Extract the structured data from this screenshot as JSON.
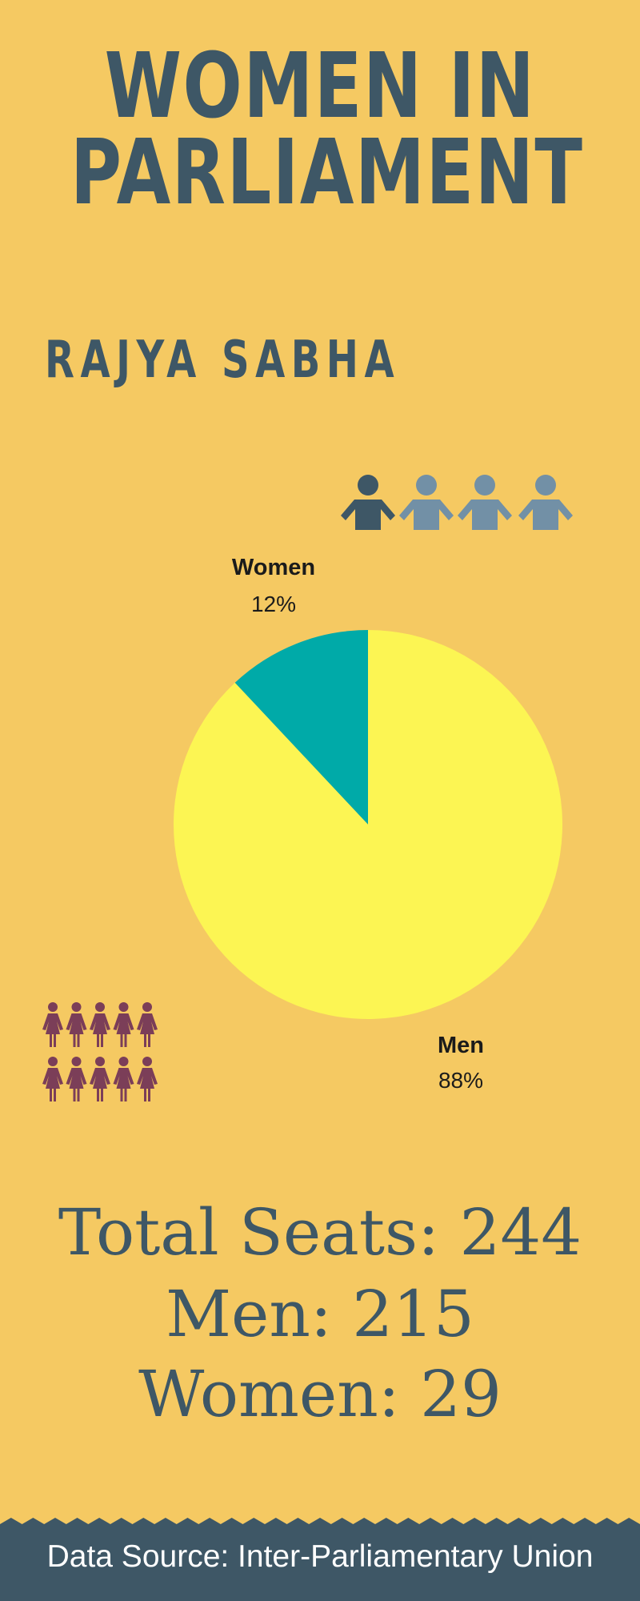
{
  "title_line1": "WOMEN IN",
  "title_line2": "PARLIAMENT",
  "subtitle": "RAJYA SABHA",
  "chart_data": {
    "type": "pie",
    "slices": [
      {
        "name": "Women",
        "value": 12,
        "label": "12%",
        "color": "#00aaa8"
      },
      {
        "name": "Men",
        "value": 88,
        "label": "88%",
        "color": "#fcf553"
      }
    ]
  },
  "men_icon_row": {
    "count": 4,
    "highlighted": 1,
    "highlight_color": "#3e5766",
    "color": "#7290a6"
  },
  "women_icon_grid": {
    "rows": 2,
    "cols": 5,
    "color": "#7b3e58"
  },
  "stats": {
    "total": "Total Seats: 244",
    "men": "Men: 215",
    "women": "Women: 29"
  },
  "footer": "Data Source: Inter-Parliamentary Union",
  "colors": {
    "background": "#f5c962",
    "text": "#3e5766",
    "footer_bg": "#3e5766"
  }
}
